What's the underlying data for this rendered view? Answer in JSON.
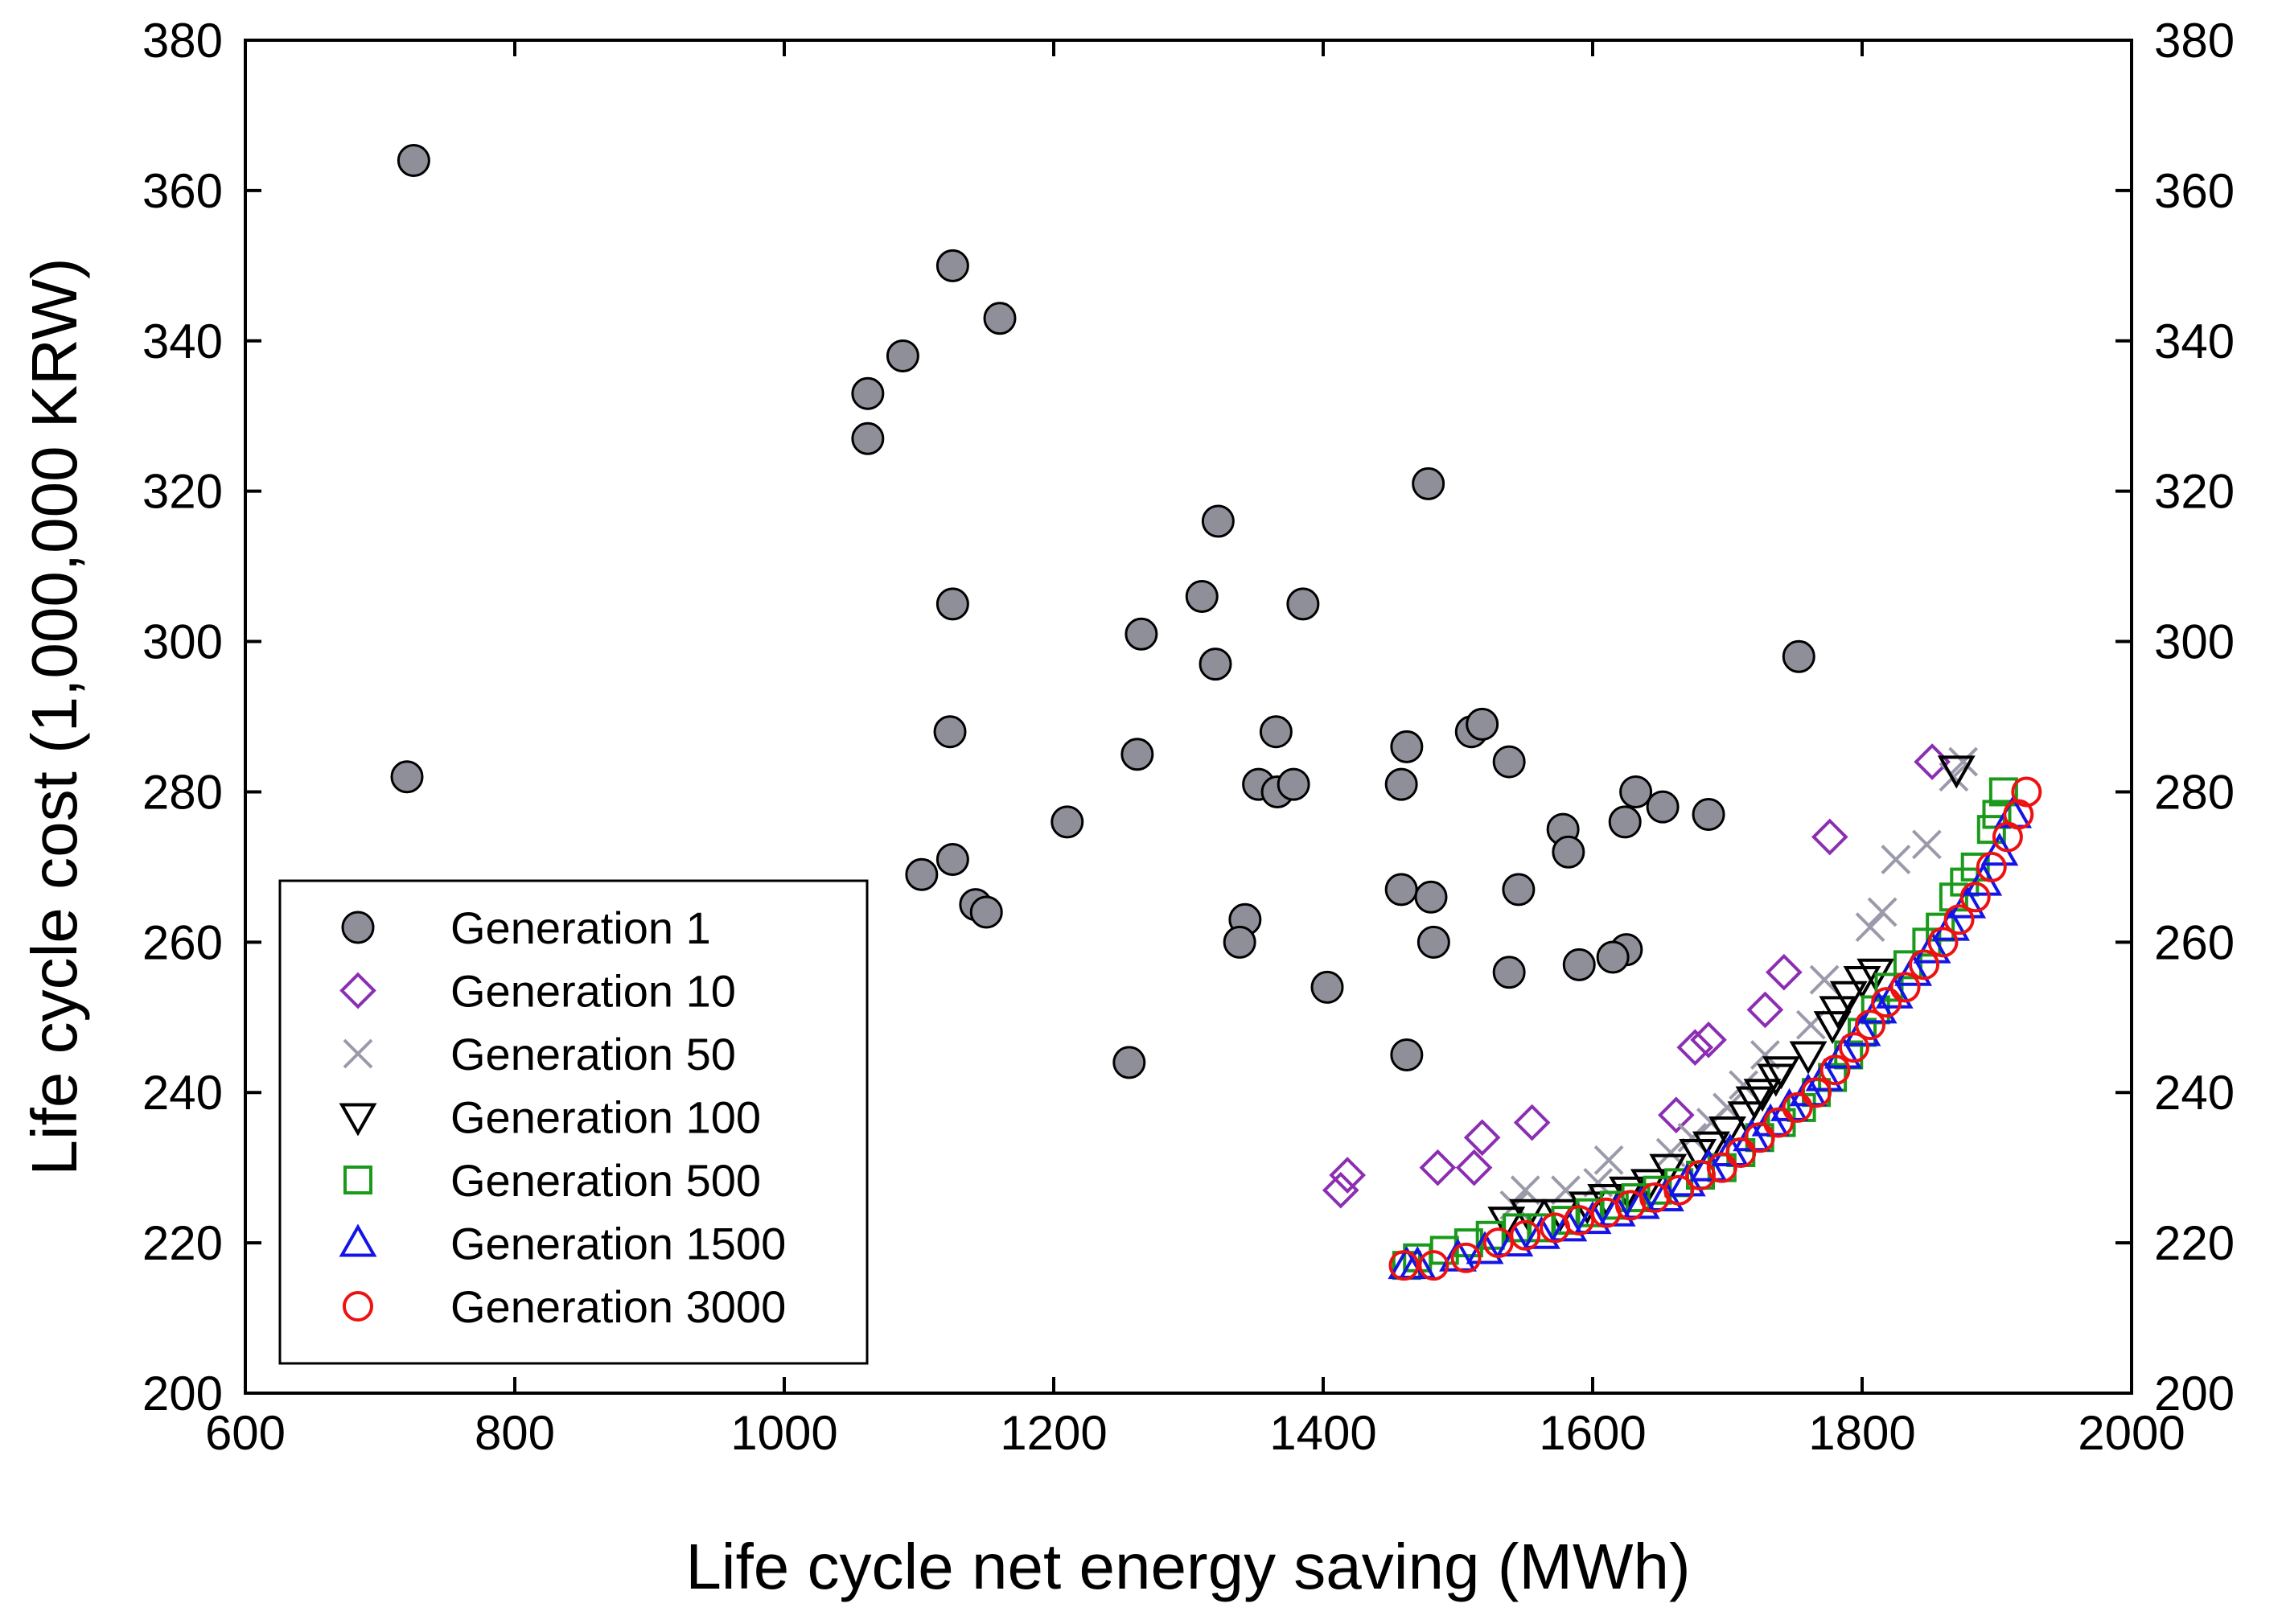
{
  "chart_data": {
    "type": "scatter",
    "title": "",
    "xlabel": "Life cycle net energy saving (MWh)",
    "ylabel": "Life cycle cost (1,000,000 KRW)",
    "xlim": [
      600,
      2000
    ],
    "ylim": [
      200,
      380
    ],
    "xticks": [
      "600",
      "800",
      "1000",
      "1200",
      "1400",
      "1600",
      "1800",
      "2000"
    ],
    "yticks": [
      "200",
      "220",
      "240",
      "260",
      "280",
      "300",
      "320",
      "340",
      "360",
      "380"
    ],
    "legend_position": "bottom-left",
    "series": [
      {
        "name": "Generation 1",
        "marker": "filled-circle",
        "color": "#8f8f99",
        "points": [
          [
            725,
            364
          ],
          [
            720,
            282
          ],
          [
            1125,
            350
          ],
          [
            1160,
            343
          ],
          [
            1088,
            338
          ],
          [
            1062,
            333
          ],
          [
            1062,
            327
          ],
          [
            1478,
            321
          ],
          [
            1322,
            316
          ],
          [
            1125,
            305
          ],
          [
            1310,
            306
          ],
          [
            1385,
            305
          ],
          [
            1265,
            301
          ],
          [
            1320,
            297
          ],
          [
            1753,
            298
          ],
          [
            1123,
            288
          ],
          [
            1262,
            285
          ],
          [
            1365,
            288
          ],
          [
            1510,
            288
          ],
          [
            1518,
            289
          ],
          [
            1462,
            286
          ],
          [
            1538,
            284
          ],
          [
            1352,
            281
          ],
          [
            1366,
            280
          ],
          [
            1378,
            281
          ],
          [
            1458,
            281
          ],
          [
            1632,
            280
          ],
          [
            1652,
            278
          ],
          [
            1686,
            277
          ],
          [
            1624,
            276
          ],
          [
            1578,
            275
          ],
          [
            1582,
            272
          ],
          [
            1210,
            276
          ],
          [
            1125,
            271
          ],
          [
            1102,
            269
          ],
          [
            1142,
            265
          ],
          [
            1150,
            264
          ],
          [
            1458,
            267
          ],
          [
            1480,
            266
          ],
          [
            1545,
            267
          ],
          [
            1342,
            263
          ],
          [
            1338,
            260
          ],
          [
            1482,
            260
          ],
          [
            1625,
            259
          ],
          [
            1615,
            258
          ],
          [
            1590,
            257
          ],
          [
            1538,
            256
          ],
          [
            1403,
            254
          ],
          [
            1462,
            245
          ],
          [
            1256,
            244
          ]
        ]
      },
      {
        "name": "Generation 10",
        "marker": "open-diamond",
        "color": "#8b2eb2",
        "points": [
          [
            1852,
            284
          ],
          [
            1776,
            274
          ],
          [
            1742,
            256
          ],
          [
            1728,
            251
          ],
          [
            1676,
            246
          ],
          [
            1686,
            247
          ],
          [
            1662,
            237
          ],
          [
            1555,
            236
          ],
          [
            1518,
            234
          ],
          [
            1485,
            230
          ],
          [
            1512,
            230
          ],
          [
            1418,
            229
          ],
          [
            1413,
            227
          ]
        ]
      },
      {
        "name": "Generation 50",
        "marker": "cross",
        "color": "#9a9aaa",
        "points": [
          [
            1875,
            284
          ],
          [
            1868,
            282
          ],
          [
            1848,
            273
          ],
          [
            1825,
            271
          ],
          [
            1815,
            264
          ],
          [
            1806,
            262
          ],
          [
            1772,
            255
          ],
          [
            1762,
            249
          ],
          [
            1728,
            245
          ],
          [
            1712,
            241
          ],
          [
            1700,
            238
          ],
          [
            1688,
            236
          ],
          [
            1674,
            234
          ],
          [
            1658,
            232
          ],
          [
            1612,
            231
          ],
          [
            1604,
            228
          ],
          [
            1580,
            227
          ],
          [
            1550,
            227
          ],
          [
            1542,
            225
          ]
        ]
      },
      {
        "name": "Generation 100",
        "marker": "open-triangle-down",
        "color": "#000000",
        "points": [
          [
            1870,
            283
          ],
          [
            1810,
            256
          ],
          [
            1800,
            255
          ],
          [
            1790,
            253
          ],
          [
            1782,
            251
          ],
          [
            1778,
            249
          ],
          [
            1760,
            245
          ],
          [
            1740,
            243
          ],
          [
            1736,
            242
          ],
          [
            1726,
            240
          ],
          [
            1720,
            239
          ],
          [
            1714,
            237
          ],
          [
            1700,
            235
          ],
          [
            1688,
            233
          ],
          [
            1678,
            232
          ],
          [
            1656,
            230
          ],
          [
            1642,
            228
          ],
          [
            1626,
            227
          ],
          [
            1610,
            226
          ],
          [
            1596,
            225
          ],
          [
            1576,
            224
          ],
          [
            1552,
            224
          ],
          [
            1536,
            223
          ]
        ]
      },
      {
        "name": "Generation 500",
        "marker": "open-square",
        "color": "#1a9a1a",
        "points": [
          [
            1905,
            280
          ],
          [
            1900,
            277
          ],
          [
            1896,
            275
          ],
          [
            1884,
            270
          ],
          [
            1876,
            268
          ],
          [
            1868,
            266
          ],
          [
            1858,
            262
          ],
          [
            1848,
            260
          ],
          [
            1834,
            257
          ],
          [
            1820,
            254
          ],
          [
            1810,
            251
          ],
          [
            1800,
            248
          ],
          [
            1790,
            245
          ],
          [
            1778,
            242
          ],
          [
            1766,
            240
          ],
          [
            1755,
            238
          ],
          [
            1740,
            236
          ],
          [
            1724,
            234
          ],
          [
            1710,
            232
          ],
          [
            1696,
            230
          ],
          [
            1680,
            229
          ],
          [
            1664,
            228
          ],
          [
            1648,
            227
          ],
          [
            1632,
            226
          ],
          [
            1616,
            225
          ],
          [
            1598,
            224
          ],
          [
            1580,
            223
          ],
          [
            1562,
            222
          ],
          [
            1544,
            222
          ],
          [
            1524,
            221
          ],
          [
            1508,
            220
          ],
          [
            1490,
            219
          ],
          [
            1470,
            218
          ],
          [
            1462,
            217
          ]
        ]
      },
      {
        "name": "Generation 1500",
        "marker": "open-triangle-up",
        "color": "#1414e6",
        "points": [
          [
            1912,
            277
          ],
          [
            1902,
            272
          ],
          [
            1890,
            268
          ],
          [
            1878,
            265
          ],
          [
            1866,
            262
          ],
          [
            1852,
            259
          ],
          [
            1838,
            256
          ],
          [
            1824,
            253
          ],
          [
            1812,
            251
          ],
          [
            1800,
            248
          ],
          [
            1786,
            245
          ],
          [
            1772,
            242
          ],
          [
            1760,
            240
          ],
          [
            1746,
            238
          ],
          [
            1732,
            236
          ],
          [
            1718,
            234
          ],
          [
            1702,
            232
          ],
          [
            1686,
            230
          ],
          [
            1670,
            228
          ],
          [
            1654,
            226
          ],
          [
            1636,
            225
          ],
          [
            1618,
            224
          ],
          [
            1600,
            223
          ],
          [
            1582,
            222
          ],
          [
            1562,
            221
          ],
          [
            1542,
            220
          ],
          [
            1520,
            219
          ],
          [
            1500,
            218
          ],
          [
            1470,
            217
          ],
          [
            1462,
            217
          ]
        ]
      },
      {
        "name": "Generation 3000",
        "marker": "open-circle",
        "color": "#ee1111",
        "points": [
          [
            1922,
            280
          ],
          [
            1916,
            277
          ],
          [
            1908,
            274
          ],
          [
            1896,
            270
          ],
          [
            1884,
            266
          ],
          [
            1872,
            263
          ],
          [
            1860,
            260
          ],
          [
            1846,
            257
          ],
          [
            1832,
            254
          ],
          [
            1818,
            252
          ],
          [
            1806,
            249
          ],
          [
            1794,
            246
          ],
          [
            1780,
            243
          ],
          [
            1766,
            240
          ],
          [
            1752,
            238
          ],
          [
            1738,
            236
          ],
          [
            1724,
            234
          ],
          [
            1710,
            232
          ],
          [
            1696,
            230
          ],
          [
            1680,
            229
          ],
          [
            1664,
            227
          ],
          [
            1646,
            226
          ],
          [
            1628,
            225
          ],
          [
            1610,
            224
          ],
          [
            1590,
            223
          ],
          [
            1572,
            222
          ],
          [
            1550,
            221
          ],
          [
            1530,
            220
          ],
          [
            1506,
            218
          ],
          [
            1482,
            217
          ],
          [
            1460,
            217
          ]
        ]
      }
    ]
  }
}
